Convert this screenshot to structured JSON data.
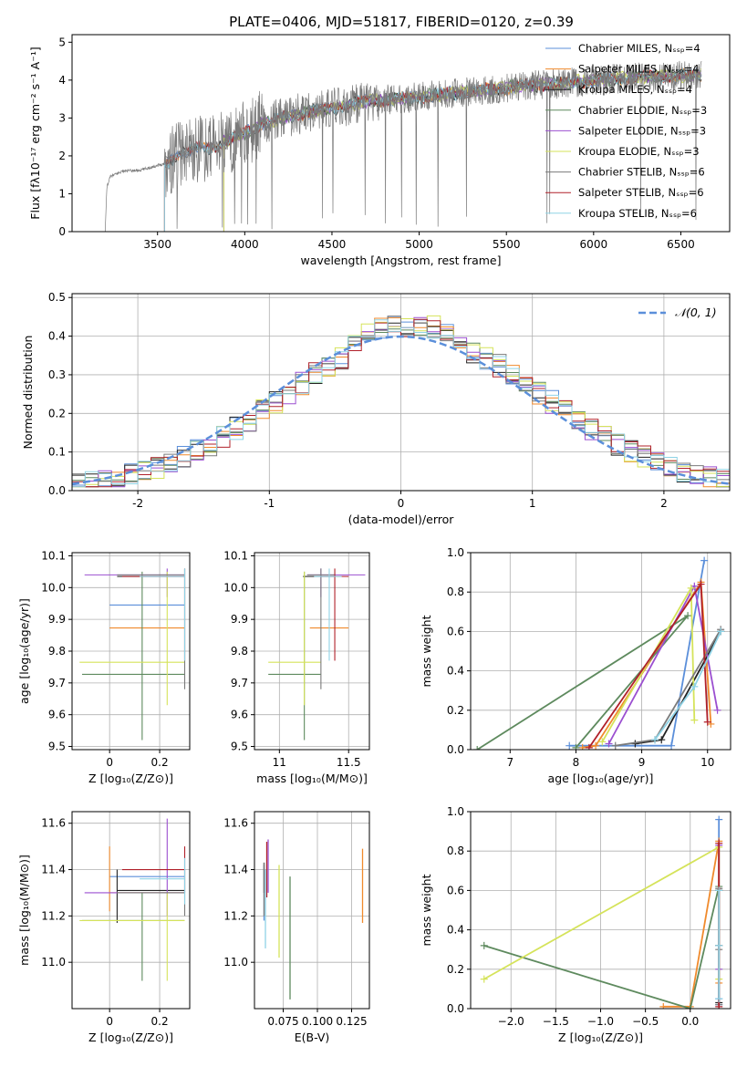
{
  "figure": {
    "title": "PLATE=0406, MJD=51817, FIBERID=0120, z=0.39"
  },
  "model_colors": [
    "#5b8fda",
    "#f08a2c",
    "#222222",
    "#5e8a5e",
    "#9b4fd0",
    "#d5e35a",
    "#7a7a7a",
    "#b0202a",
    "#8fd3e6"
  ],
  "chart_data": [
    {
      "id": "spectrum",
      "type": "line",
      "xlabel": "wavelength [Angstrom, rest frame]",
      "ylabel": "Flux [fλ10⁻¹⁷ erg cm⁻² s⁻¹ A⁻¹]",
      "xlim": [
        3010,
        6780
      ],
      "ylim": [
        0,
        5.2
      ],
      "xticks": [
        3500,
        4000,
        4500,
        5000,
        5500,
        6000,
        6500
      ],
      "yticks": [
        0,
        1,
        2,
        3,
        4,
        5
      ],
      "data_color": "#7a7a7a",
      "data_continuum": [
        [
          3200,
          0
        ],
        [
          3210,
          1.2
        ],
        [
          3230,
          1.45
        ],
        [
          3300,
          1.6
        ],
        [
          3400,
          1.62
        ],
        [
          3500,
          1.75
        ],
        [
          3550,
          1.8
        ],
        [
          3650,
          2.15
        ],
        [
          3800,
          2.2
        ],
        [
          3950,
          2.5
        ],
        [
          4000,
          2.6
        ],
        [
          4100,
          2.85
        ],
        [
          4300,
          3.1
        ],
        [
          4500,
          3.25
        ],
        [
          4700,
          3.45
        ],
        [
          4860,
          3.5
        ],
        [
          5000,
          3.55
        ],
        [
          5200,
          3.65
        ],
        [
          5400,
          3.75
        ],
        [
          5600,
          3.85
        ],
        [
          5800,
          3.9
        ],
        [
          6000,
          4.0
        ],
        [
          6200,
          4.05
        ],
        [
          6400,
          4.1
        ],
        [
          6600,
          4.12
        ]
      ],
      "models_start": [
        3540,
        3540,
        3540,
        3880,
        3880,
        3880,
        3540,
        3540,
        3540
      ],
      "legend": [
        {
          "label": "Chabrier MILES, Nₛₛₚ=4"
        },
        {
          "label": "Salpeter MILES, Nₛₛₚ=4"
        },
        {
          "label": "Kroupa MILES, Nₛₛₚ=4"
        },
        {
          "label": "Chabrier ELODIE, Nₛₛₚ=3"
        },
        {
          "label": "Salpeter ELODIE, Nₛₛₚ=3"
        },
        {
          "label": "Kroupa ELODIE, Nₛₛₚ=3"
        },
        {
          "label": "Chabrier STELIB, Nₛₛₚ=6"
        },
        {
          "label": "Salpeter STELIB, Nₛₛₚ=6"
        },
        {
          "label": "Kroupa STELIB, Nₛₛₚ=6"
        }
      ]
    },
    {
      "id": "residuals",
      "type": "area",
      "xlabel": "(data-model)/error",
      "ylabel": "Normed distribution",
      "xlim": [
        -2.5,
        2.5
      ],
      "ylim": [
        0,
        0.51
      ],
      "xticks": [
        -2,
        -1,
        0,
        1,
        2
      ],
      "yticks": [
        0.0,
        0.1,
        0.2,
        0.3,
        0.4,
        0.5
      ],
      "bin_width": 0.1,
      "normal_label": "𝒩(0, 1)",
      "normal_color": "#5b8fda"
    },
    {
      "id": "age_vs_Z",
      "type": "scatter",
      "xlabel": "Z [log₁₀(Z/Z⊙)]",
      "ylabel": "age  [log₁₀(age/yr)]",
      "xlim": [
        -0.15,
        0.32
      ],
      "ylim": [
        9.49,
        10.11
      ],
      "xticks": [
        0.0,
        0.2
      ],
      "yticks": [
        9.5,
        9.6,
        9.7,
        9.8,
        9.9,
        10.0,
        10.1
      ]
    },
    {
      "id": "age_vs_mass",
      "type": "scatter",
      "xlabel": "mass [log₁₀(M/M⊙)]",
      "xlim": [
        10.82,
        11.65
      ],
      "ylim": [
        9.49,
        10.11
      ],
      "xticks": [
        11.0,
        11.5
      ],
      "yticks": [
        9.5,
        9.6,
        9.7,
        9.8,
        9.9,
        10.0,
        10.1
      ]
    },
    {
      "id": "mass_vs_Z",
      "type": "scatter",
      "xlabel": "Z [log₁₀(Z/Z⊙)]",
      "ylabel": "mass [log₁₀(M/M⊙)]",
      "xlim": [
        -0.15,
        0.32
      ],
      "ylim": [
        10.8,
        11.65
      ],
      "xticks": [
        0.0,
        0.2
      ],
      "yticks": [
        11.0,
        11.2,
        11.4,
        11.6
      ]
    },
    {
      "id": "mass_vs_ebv",
      "type": "scatter",
      "xlabel": "E(B-V)",
      "xlim": [
        0.054,
        0.138
      ],
      "ylim": [
        10.8,
        11.65
      ],
      "xticks": [
        0.075,
        0.1,
        0.125
      ],
      "xticklabels": [
        "0.075",
        "0.100",
        "0.125"
      ],
      "yticks": [
        11.0,
        11.2,
        11.4,
        11.6
      ]
    },
    {
      "id": "weight_vs_age",
      "type": "line",
      "xlabel": "age  [log₁₀(age/yr)]",
      "ylabel": "mass weight",
      "xlim": [
        6.4,
        10.35
      ],
      "ylim": [
        0,
        1.0
      ],
      "xticks": [
        7,
        8,
        9,
        10
      ],
      "yticks": [
        0.0,
        0.2,
        0.4,
        0.6,
        0.8,
        1.0
      ]
    },
    {
      "id": "weight_vs_Z",
      "type": "line",
      "xlabel": "Z [log₁₀(Z/Z⊙)]",
      "ylabel": "mass weight",
      "xlim": [
        -2.45,
        0.45
      ],
      "ylim": [
        0,
        1.0
      ],
      "xticks": [
        -2.0,
        -1.5,
        -1.0,
        -0.5,
        0.0
      ],
      "xticklabels": [
        "−2.0",
        "−1.5",
        "−1.0",
        "−0.5",
        "0.0"
      ],
      "yticks": [
        0.0,
        0.2,
        0.4,
        0.6,
        0.8,
        1.0
      ]
    }
  ],
  "fits": [
    {
      "Z": 0.0,
      "Zerr": [
        0.0,
        0.3
      ],
      "age": 9.945,
      "ageerr": [
        0.0,
        0.0
      ],
      "mass": 11.37,
      "masserr": [
        0.0,
        0.0
      ],
      "ebv": 0.061,
      "ebverr": [
        11.18,
        11.42
      ],
      "weights": [
        [
          7.9,
          0.02
        ],
        [
          9.45,
          0.02
        ],
        [
          9.95,
          0.96
        ]
      ],
      "wZ": [
        [
          0.32,
          0.02
        ],
        [
          0.32,
          0.05
        ],
        [
          0.32,
          0.96
        ]
      ]
    },
    {
      "Z": 0.0,
      "Zerr": [
        0.0,
        0.3
      ],
      "age": 9.873,
      "ageerr": [
        0.0,
        0.0
      ],
      "mass": 11.3,
      "masserr": [
        11.22,
        11.5
      ],
      "ebv": 0.133,
      "ebverr": [
        11.17,
        11.49
      ],
      "weights": [
        [
          8.1,
          0.01
        ],
        [
          8.3,
          0.02
        ],
        [
          9.9,
          0.85
        ],
        [
          10.05,
          0.13
        ]
      ],
      "wZ": [
        [
          -0.3,
          0.01
        ],
        [
          0.0,
          0.01
        ],
        [
          0.32,
          0.85
        ],
        [
          0.32,
          0.13
        ]
      ]
    },
    {
      "Z": 0.03,
      "Zerr": [
        0.03,
        0.3
      ],
      "age": 10.035,
      "ageerr": [
        0.0,
        0.0
      ],
      "mass": 11.31,
      "masserr": [
        11.17,
        11.4
      ],
      "ebv": 0.061,
      "ebverr": [
        11.3,
        11.43
      ],
      "weights": [
        [
          8.9,
          0.03
        ],
        [
          9.3,
          0.05
        ],
        [
          10.2,
          0.6
        ]
      ],
      "wZ": [
        [
          0.32,
          0.03
        ],
        [
          0.32,
          0.32
        ],
        [
          0.32,
          0.6
        ]
      ]
    },
    {
      "Z": 0.13,
      "Zerr": [
        -0.11,
        0.3
      ],
      "age": 9.727,
      "ageerr": [
        9.52,
        10.05
      ],
      "mass": 11.18,
      "masserr": [
        10.92,
        11.3
      ],
      "ebv": 0.08,
      "ebverr": [
        10.84,
        11.37
      ],
      "weights": [
        [
          6.5,
          0.0
        ],
        [
          9.7,
          0.68
        ],
        [
          8.0,
          0.01
        ]
      ],
      "wZ": [
        [
          -2.3,
          0.32
        ],
        [
          0.0,
          0.0
        ],
        [
          0.32,
          0.62
        ]
      ]
    },
    {
      "Z": 0.23,
      "Zerr": [
        -0.1,
        0.3
      ],
      "age": 10.04,
      "ageerr": [
        9.97,
        10.06
      ],
      "mass": 11.3,
      "masserr": [
        11.2,
        11.62
      ],
      "ebv": 0.064,
      "ebverr": [
        11.3,
        11.53
      ],
      "weights": [
        [
          8.5,
          0.03
        ],
        [
          9.8,
          0.83
        ],
        [
          10.15,
          0.2
        ]
      ],
      "wZ": [
        [
          0.32,
          0.2
        ],
        [
          0.32,
          0.83
        ]
      ]
    },
    {
      "Z": 0.23,
      "Zerr": [
        -0.12,
        0.3
      ],
      "age": 9.765,
      "ageerr": [
        9.63,
        10.05
      ],
      "mass": 11.18,
      "masserr": [
        10.92,
        11.3
      ],
      "ebv": 0.072,
      "ebverr": [
        11.02,
        11.42
      ],
      "weights": [
        [
          8.4,
          0.04
        ],
        [
          9.75,
          0.82
        ],
        [
          9.8,
          0.15
        ]
      ],
      "wZ": [
        [
          -2.3,
          0.15
        ],
        [
          0.32,
          0.82
        ],
        [
          0.32,
          0.15
        ]
      ]
    },
    {
      "Z": 0.3,
      "Zerr": [
        0.03,
        0.3
      ],
      "age": 10.04,
      "ageerr": [
        9.68,
        10.06
      ],
      "mass": 11.3,
      "masserr": [
        11.2,
        11.4
      ],
      "ebv": 0.061,
      "ebverr": [
        11.2,
        11.43
      ],
      "weights": [
        [
          8.6,
          0.02
        ],
        [
          9.2,
          0.05
        ],
        [
          10.2,
          0.61
        ]
      ],
      "wZ": [
        [
          0.32,
          0.02
        ],
        [
          0.32,
          0.3
        ],
        [
          0.32,
          0.61
        ]
      ]
    },
    {
      "Z": 0.3,
      "Zerr": [
        0.05,
        0.3
      ],
      "age": 10.035,
      "ageerr": [
        9.77,
        10.06
      ],
      "mass": 11.4,
      "masserr": [
        11.3,
        11.5
      ],
      "ebv": 0.063,
      "ebverr": [
        11.28,
        11.52
      ],
      "weights": [
        [
          8.2,
          0.01
        ],
        [
          9.9,
          0.84
        ],
        [
          10.0,
          0.14
        ]
      ],
      "wZ": [
        [
          0.32,
          0.01
        ],
        [
          0.32,
          0.84
        ]
      ]
    },
    {
      "Z": 0.3,
      "Zerr": [
        0.12,
        0.3
      ],
      "age": 10.035,
      "ageerr": [
        9.77,
        10.06
      ],
      "mass": 11.36,
      "masserr": [
        11.25,
        11.45
      ],
      "ebv": 0.062,
      "ebverr": [
        11.06,
        11.4
      ],
      "weights": [
        [
          9.2,
          0.05
        ],
        [
          9.8,
          0.32
        ],
        [
          10.2,
          0.6
        ]
      ],
      "wZ": [
        [
          0.32,
          0.05
        ],
        [
          0.32,
          0.32
        ],
        [
          0.32,
          0.6
        ]
      ]
    }
  ]
}
